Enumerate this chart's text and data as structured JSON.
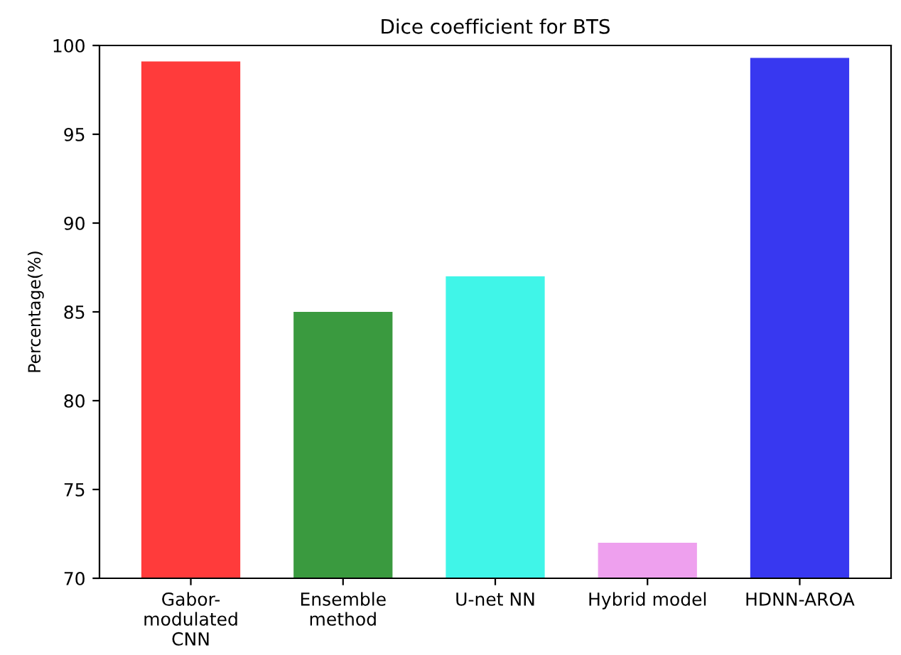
{
  "chart_data": {
    "type": "bar",
    "title": "Dice coefficient for BTS",
    "ylabel": "Percentage(%)",
    "categories": [
      "Gabor-\nmodulated\nCNN",
      "Ensemble\nmethod",
      "U-net NN",
      "Hybrid model",
      "HDNN-AROA"
    ],
    "values": [
      99.1,
      85,
      87,
      72,
      99.3
    ],
    "colors": [
      "#ff3b3b",
      "#3a9a3f",
      "#40f5e8",
      "#eea0ee",
      "#3838f0"
    ],
    "ylim": [
      70,
      100
    ],
    "yticks": [
      70,
      75,
      80,
      85,
      90,
      95,
      100
    ],
    "grid": false,
    "legend": false
  }
}
